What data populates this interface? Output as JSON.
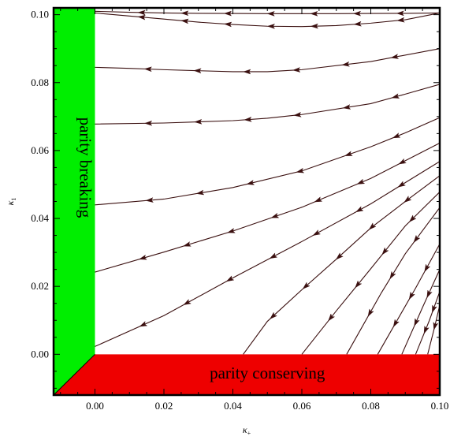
{
  "chart_data": {
    "type": "streamplot",
    "xlim": [
      -0.012,
      0.1
    ],
    "ylim": [
      -0.012,
      0.102
    ],
    "x_ticks": [
      0.0,
      0.02,
      0.04,
      0.06,
      0.08,
      0.1
    ],
    "y_ticks": [
      0.0,
      0.02,
      0.04,
      0.06,
      0.08,
      0.1
    ],
    "x_tick_labels": [
      "0.00",
      "0.02",
      "0.04",
      "0.06",
      "0.08",
      "0.10"
    ],
    "y_tick_labels": [
      "0.00",
      "0.02",
      "0.04",
      "0.06",
      "0.08",
      "0.10"
    ],
    "xlabel": {
      "base": "κ",
      "sub": "+"
    },
    "ylabel": {
      "base": "κ",
      "sub": "1"
    },
    "grid": false,
    "colors": {
      "parity_breaking": "#00ee00",
      "parity_conserving": "#ee0000",
      "stream": "#3a0f0f"
    },
    "regions": [
      {
        "name": "parity breaking",
        "color_key": "parity_breaking",
        "polygon": [
          [
            -0.012,
            0.102
          ],
          [
            0.0,
            0.102
          ],
          [
            0.0,
            0.0
          ],
          [
            -0.012,
            -0.012
          ]
        ]
      },
      {
        "name": "parity conserving",
        "color_key": "parity_conserving",
        "polygon": [
          [
            0.0,
            0.0
          ],
          [
            0.1,
            0.0
          ],
          [
            0.1,
            -0.012
          ],
          [
            -0.012,
            -0.012
          ]
        ]
      }
    ],
    "streamlines": [
      {
        "points": [
          [
            0.1,
            0.1005
          ],
          [
            0.09,
            0.1004
          ],
          [
            0.08,
            0.10035
          ],
          [
            0.07,
            0.1003
          ],
          [
            0.06,
            0.1003
          ],
          [
            0.05,
            0.1003
          ],
          [
            0.04,
            0.10035
          ],
          [
            0.03,
            0.1004
          ],
          [
            0.02,
            0.1005
          ],
          [
            0.01,
            0.1007
          ],
          [
            0.0,
            0.101
          ]
        ],
        "arrows": 7
      },
      {
        "points": [
          [
            0.1,
            0.1005
          ],
          [
            0.09,
            0.0985
          ],
          [
            0.08,
            0.0975
          ],
          [
            0.07,
            0.0968
          ],
          [
            0.06,
            0.0965
          ],
          [
            0.05,
            0.0966
          ],
          [
            0.04,
            0.0971
          ],
          [
            0.03,
            0.0978
          ],
          [
            0.02,
            0.0987
          ],
          [
            0.01,
            0.0996
          ],
          [
            0.0,
            0.1005
          ]
        ],
        "arrows": 7
      },
      {
        "points": [
          [
            0.1,
            0.09
          ],
          [
            0.08,
            0.0862
          ],
          [
            0.06,
            0.0838
          ],
          [
            0.05,
            0.0832
          ],
          [
            0.04,
            0.0832
          ],
          [
            0.02,
            0.0838
          ],
          [
            0.01,
            0.0842
          ],
          [
            0.0,
            0.0845
          ]
        ],
        "arrows": 6
      },
      {
        "points": [
          [
            0.1,
            0.0795
          ],
          [
            0.09,
            0.0766
          ],
          [
            0.08,
            0.0738
          ],
          [
            0.06,
            0.0706
          ],
          [
            0.05,
            0.0695
          ],
          [
            0.04,
            0.0688
          ],
          [
            0.02,
            0.0681
          ],
          [
            0.0,
            0.0678
          ]
        ],
        "arrows": 6
      },
      {
        "points": [
          [
            0.1,
            0.0697
          ],
          [
            0.09,
            0.0652
          ],
          [
            0.08,
            0.0611
          ],
          [
            0.06,
            0.054
          ],
          [
            0.04,
            0.0491
          ],
          [
            0.02,
            0.0457
          ],
          [
            0.0,
            0.044
          ]
        ],
        "arrows": 6
      },
      {
        "points": [
          [
            0.1,
            0.0622
          ],
          [
            0.08,
            0.0518
          ],
          [
            0.06,
            0.0433
          ],
          [
            0.04,
            0.0363
          ],
          [
            0.02,
            0.0301
          ],
          [
            0.0,
            0.0242
          ]
        ],
        "arrows": 7
      },
      {
        "points": [
          [
            0.1,
            0.0568
          ],
          [
            0.08,
            0.0443
          ],
          [
            0.06,
            0.0332
          ],
          [
            0.04,
            0.0225
          ],
          [
            0.02,
            0.0114
          ],
          [
            0.0,
            0.0023
          ]
        ],
        "arrows": 7
      },
      {
        "points": [
          [
            0.1,
            0.0526
          ],
          [
            0.09,
            0.045
          ],
          [
            0.08,
            0.0372
          ],
          [
            0.07,
            0.028
          ],
          [
            0.06,
            0.019
          ],
          [
            0.05,
            0.0097
          ],
          [
            0.043,
            0.0
          ]
        ],
        "arrows": 5
      },
      {
        "points": [
          [
            0.1,
            0.0478
          ],
          [
            0.09,
            0.0378
          ],
          [
            0.08,
            0.0252
          ],
          [
            0.07,
            0.0128
          ],
          [
            0.06,
            0.0
          ]
        ],
        "arrows": 4
      },
      {
        "points": [
          [
            0.1,
            0.0432
          ],
          [
            0.09,
            0.0296
          ],
          [
            0.083,
            0.018
          ],
          [
            0.073,
            0.0
          ]
        ],
        "arrows": 3
      },
      {
        "points": [
          [
            0.1,
            0.0325
          ],
          [
            0.093,
            0.0195
          ],
          [
            0.082,
            0.0
          ]
        ],
        "arrows": 3
      },
      {
        "points": [
          [
            0.1,
            0.025
          ],
          [
            0.095,
            0.0138
          ],
          [
            0.089,
            0.0
          ]
        ],
        "arrows": 2
      },
      {
        "points": [
          [
            0.1,
            0.0185
          ],
          [
            0.097,
            0.01
          ],
          [
            0.093,
            0.0
          ]
        ],
        "arrows": 2
      },
      {
        "points": [
          [
            0.1,
            0.0145
          ],
          [
            0.0985,
            0.008
          ],
          [
            0.0965,
            0.0
          ]
        ],
        "arrows": 1
      }
    ]
  },
  "labels": {
    "parity_breaking": "parity breaking",
    "parity_conserving": "parity conserving"
  }
}
